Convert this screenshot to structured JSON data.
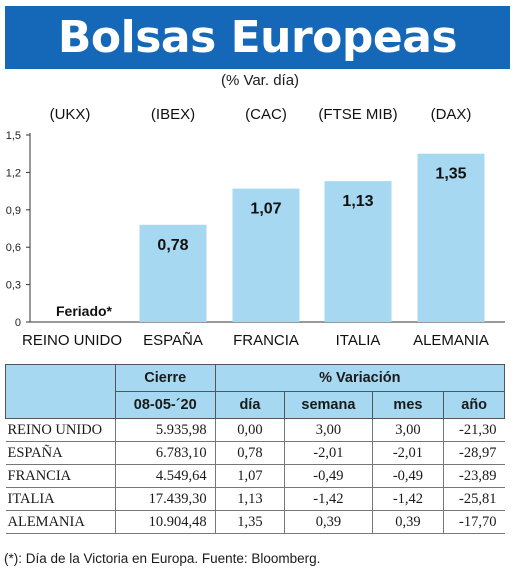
{
  "title": "Bolsas Europeas",
  "subtitle": "(% Var. día)",
  "colors": {
    "header": "#1567b7",
    "bar": "#a6d9f1",
    "table_header": "#a6d9f1"
  },
  "chart_data": {
    "type": "bar",
    "categories": [
      "REINO UNIDO",
      "ESPAÑA",
      "FRANCIA",
      "ITALIA",
      "ALEMANIA"
    ],
    "index_labels": [
      "(UKX)",
      "(IBEX)",
      "(CAC)",
      "(FTSE MIB)",
      "(DAX)"
    ],
    "values": [
      0,
      0.78,
      1.07,
      1.13,
      1.35
    ],
    "data_labels": [
      "Feriado*",
      "0,78",
      "1,07",
      "1,13",
      "1,35"
    ],
    "yticks": [
      "0",
      "0,3",
      "0,6",
      "0,9",
      "1,2",
      "1,5"
    ],
    "ylim": [
      0,
      1.5
    ],
    "grid": false
  },
  "table": {
    "headers": {
      "cierre": "Cierre",
      "variacion": "% Variación",
      "date": "08-05-´20",
      "dia": "día",
      "semana": "semana",
      "mes": "mes",
      "ano": "año"
    },
    "rows": [
      {
        "name": "REINO UNIDO",
        "cierre": "5.935,98",
        "dia": "0,00",
        "semana": "3,00",
        "mes": "3,00",
        "ano": "-21,30"
      },
      {
        "name": "ESPAÑA",
        "cierre": "6.783,10",
        "dia": "0,78",
        "semana": "-2,01",
        "mes": "-2,01",
        "ano": "-28,97"
      },
      {
        "name": "FRANCIA",
        "cierre": "4.549,64",
        "dia": "1,07",
        "semana": "-0,49",
        "mes": "-0,49",
        "ano": "-23,89"
      },
      {
        "name": "ITALIA",
        "cierre": "17.439,30",
        "dia": "1,13",
        "semana": "-1,42",
        "mes": "-1,42",
        "ano": "-25,81"
      },
      {
        "name": "ALEMANIA",
        "cierre": "10.904,48",
        "dia": "1,35",
        "semana": "0,39",
        "mes": "0,39",
        "ano": "-17,70"
      }
    ]
  },
  "footnote": "(*): Día de la Victoria en Europa. Fuente: Bloomberg."
}
